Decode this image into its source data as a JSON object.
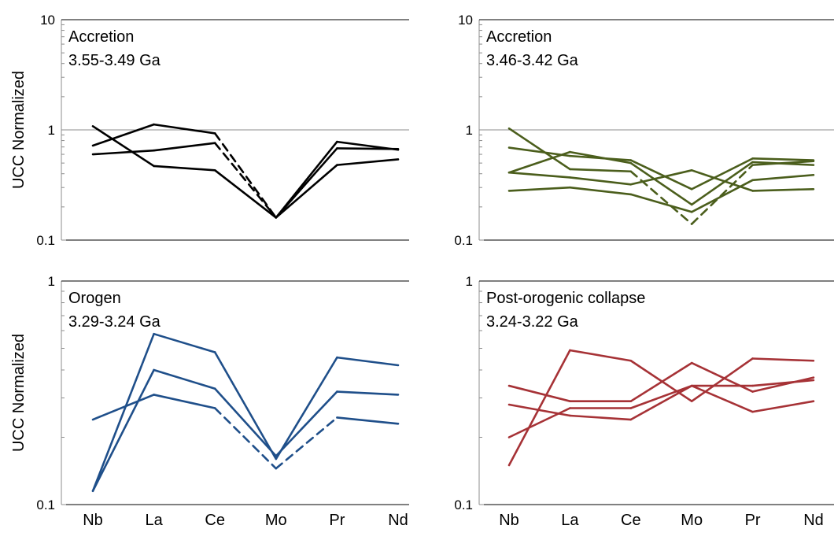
{
  "chart_data": [
    {
      "type": "line",
      "title_lines": [
        "Accretion",
        "3.55-3.49 Ga"
      ],
      "xlabel": "",
      "ylabel": "UCC Normalized",
      "categories": [
        "Nb",
        "La",
        "Ce",
        "Mo",
        "Pr",
        "Nd"
      ],
      "yscale": "log",
      "ylim": [
        0.1,
        10
      ],
      "yticks": [
        "0.1",
        "1",
        "10"
      ],
      "reference_line": 1,
      "color": "#000000",
      "series": [
        {
          "values": [
            0.72,
            1.12,
            0.93,
            0.16,
            0.78,
            0.66
          ],
          "dashed_segments": [
            2
          ]
        },
        {
          "values": [
            1.08,
            0.47,
            0.43,
            0.16,
            0.48,
            0.54
          ],
          "dashed_segments": []
        },
        {
          "values": [
            0.6,
            0.65,
            0.76,
            0.16,
            0.68,
            0.67
          ],
          "dashed_segments": [
            2
          ]
        }
      ]
    },
    {
      "type": "line",
      "title_lines": [
        "Accretion",
        "3.46-3.42 Ga"
      ],
      "xlabel": "",
      "ylabel": "",
      "categories": [
        "Nb",
        "La",
        "Ce",
        "Mo",
        "Pr",
        "Nd"
      ],
      "yscale": "log",
      "ylim": [
        0.1,
        10
      ],
      "yticks": [
        "0.1",
        "1",
        "10"
      ],
      "reference_line": 1,
      "color": "#4b5e1c",
      "series": [
        {
          "values": [
            1.03,
            0.44,
            0.42,
            0.14,
            0.48,
            0.52
          ],
          "dashed_segments": [
            2,
            3
          ]
        },
        {
          "values": [
            0.69,
            0.58,
            0.53,
            0.29,
            0.55,
            0.53
          ],
          "dashed_segments": []
        },
        {
          "values": [
            0.41,
            0.63,
            0.5,
            0.21,
            0.51,
            0.48
          ],
          "dashed_segments": []
        },
        {
          "values": [
            0.41,
            0.37,
            0.32,
            0.43,
            0.28,
            0.29
          ],
          "dashed_segments": []
        },
        {
          "values": [
            0.28,
            0.3,
            0.26,
            0.18,
            0.35,
            0.39
          ],
          "dashed_segments": []
        }
      ]
    },
    {
      "type": "line",
      "title_lines": [
        "Orogen",
        "3.29-3.24 Ga"
      ],
      "xlabel": "",
      "ylabel": "UCC Normalized",
      "categories": [
        "Nb",
        "La",
        "Ce",
        "Mo",
        "Pr",
        "Nd"
      ],
      "yscale": "log",
      "ylim": [
        0.1,
        1
      ],
      "yticks": [
        "0.1",
        "1"
      ],
      "color": "#1f4f8a",
      "series": [
        {
          "values": [
            0.115,
            0.58,
            0.48,
            0.16,
            0.455,
            0.42
          ],
          "dashed_segments": []
        },
        {
          "values": [
            0.115,
            0.4,
            0.33,
            0.165,
            0.32,
            0.31
          ],
          "dashed_segments": []
        },
        {
          "values": [
            0.24,
            0.31,
            0.27,
            0.145,
            0.245,
            0.23
          ],
          "dashed_segments": [
            2,
            3
          ]
        }
      ]
    },
    {
      "type": "line",
      "title_lines": [
        "Post-orogenic collapse",
        "3.24-3.22 Ga"
      ],
      "xlabel": "",
      "ylabel": "",
      "categories": [
        "Nb",
        "La",
        "Ce",
        "Mo",
        "Pr",
        "Nd"
      ],
      "yscale": "log",
      "ylim": [
        0.1,
        1
      ],
      "yticks": [
        "0.1",
        "1"
      ],
      "color": "#a63236",
      "series": [
        {
          "values": [
            0.15,
            0.49,
            0.44,
            0.29,
            0.45,
            0.44
          ],
          "dashed_segments": []
        },
        {
          "values": [
            0.34,
            0.29,
            0.29,
            0.43,
            0.32,
            0.37
          ],
          "dashed_segments": []
        },
        {
          "values": [
            0.28,
            0.25,
            0.24,
            0.34,
            0.26,
            0.29
          ],
          "dashed_segments": []
        },
        {
          "values": [
            0.2,
            0.27,
            0.27,
            0.34,
            0.34,
            0.36
          ],
          "dashed_segments": []
        }
      ]
    }
  ]
}
